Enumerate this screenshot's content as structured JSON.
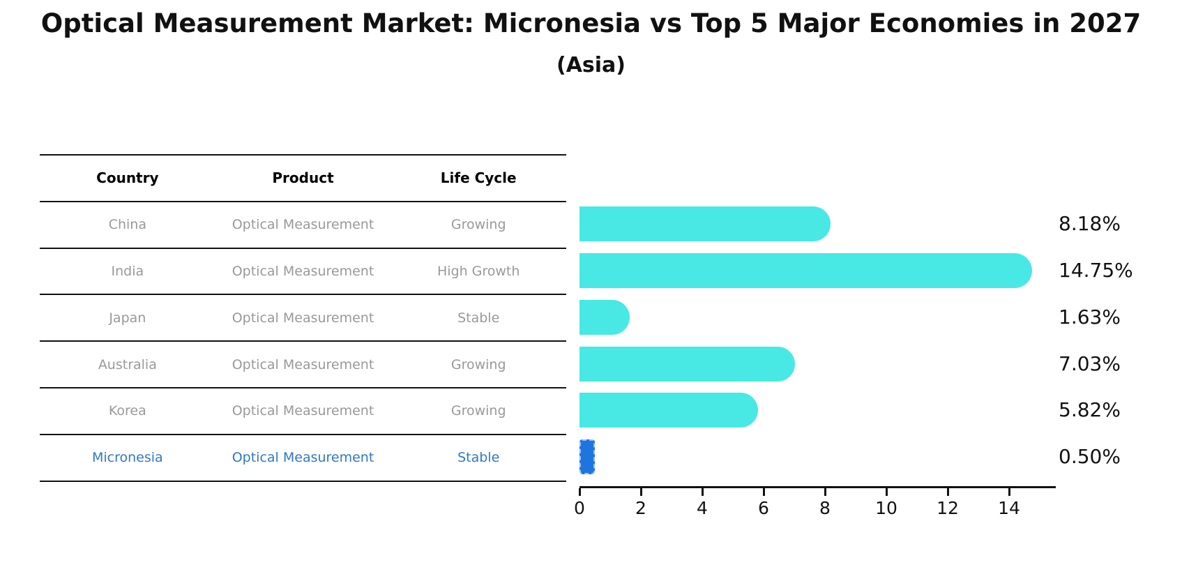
{
  "header": {
    "title": "Optical Measurement Market: Micronesia vs Top 5 Major Economies in 2027",
    "subtitle": "(Asia)"
  },
  "table": {
    "columns": [
      "Country",
      "Product",
      "Life Cycle"
    ],
    "rows": [
      {
        "country": "China",
        "product": "Optical Measurement",
        "life_cycle": "Growing",
        "highlight": false
      },
      {
        "country": "India",
        "product": "Optical Measurement",
        "life_cycle": "High Growth",
        "highlight": false
      },
      {
        "country": "Japan",
        "product": "Optical Measurement",
        "life_cycle": "Stable",
        "highlight": false
      },
      {
        "country": "Australia",
        "product": "Optical Measurement",
        "life_cycle": "Growing",
        "highlight": false
      },
      {
        "country": "Korea",
        "product": "Optical Measurement",
        "life_cycle": "Growing",
        "highlight": false
      },
      {
        "country": "Micronesia",
        "product": "Optical Measurement",
        "life_cycle": "Stable",
        "highlight": true
      }
    ]
  },
  "chart_data": {
    "type": "bar",
    "orientation": "horizontal",
    "title": "Optical Measurement Market: Micronesia vs Top 5 Major Economies in 2027",
    "subtitle": "(Asia)",
    "categories": [
      "China",
      "India",
      "Japan",
      "Australia",
      "Korea",
      "Micronesia"
    ],
    "values": [
      8.18,
      14.75,
      1.63,
      7.03,
      5.82,
      0.5
    ],
    "value_labels": [
      "8.18%",
      "14.75%",
      "1.63%",
      "7.03%",
      "5.82%",
      "0.50%"
    ],
    "xticks": [
      0,
      2,
      4,
      6,
      8,
      10,
      12,
      14
    ],
    "xlim": [
      0,
      15.5
    ],
    "grid": false,
    "legend": false,
    "bar_color": "#48e8e4",
    "highlight_bar_color": "#1f75e0",
    "highlight_index": 5,
    "highlight_text_color": "#2e79c4",
    "text_color": "#111111",
    "table_text_color": "#999999"
  }
}
